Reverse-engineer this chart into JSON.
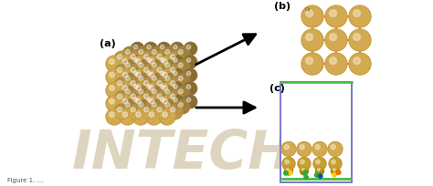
{
  "bg_color": "#ffffff",
  "fig_width": 4.74,
  "fig_height": 2.04,
  "dpi": 100,
  "label_a": "(a)",
  "label_b": "(b)",
  "label_c": "(c)",
  "label_fontsize": 8,
  "arrow_color": "#111111",
  "gold": "#d4aa50",
  "gold_edge": "#b08820",
  "orange_connector": "#cc7700",
  "panel_c_border_blue": "#7777cc",
  "panel_c_border_green": "#44bb44",
  "watermark_color": "#ddd5c0",
  "watermark_text": "INTECH",
  "caption_fontsize": 5
}
